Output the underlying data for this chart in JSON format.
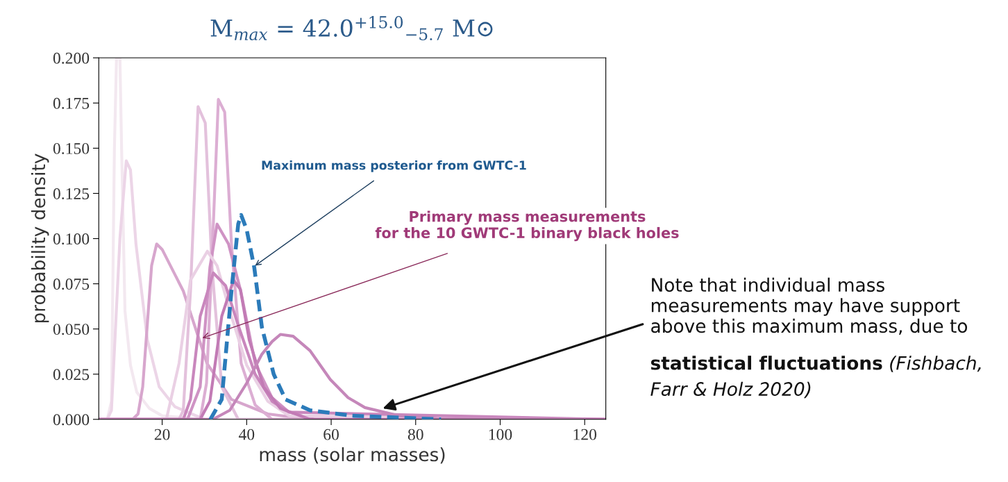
{
  "chart_data": {
    "type": "line",
    "title": "M$_{max}$ = 42.0$^{+15.0}$$_{−5.7}$ M⊙",
    "xlabel": "mass (solar masses)",
    "ylabel": "probability density",
    "xlim": [
      5,
      125
    ],
    "ylim": [
      0,
      0.2
    ],
    "xticks": [
      20,
      40,
      60,
      80,
      100,
      120
    ],
    "yticks": [
      {
        "value": 0,
        "label": "0.000"
      },
      {
        "value": 0.025,
        "label": "0.025"
      },
      {
        "value": 0.05,
        "label": "0.050"
      },
      {
        "value": 0.075,
        "label": "0.075"
      },
      {
        "value": 0.1,
        "label": "0.100"
      },
      {
        "value": 0.125,
        "label": "0.125"
      },
      {
        "value": 0.15,
        "label": "0.150"
      },
      {
        "value": 0.175,
        "label": "0.175"
      },
      {
        "value": 0.2,
        "label": "0.200"
      }
    ],
    "grid": false,
    "legend": false,
    "series": [
      {
        "color": "#f3e8f0",
        "line_style": "solid",
        "x": [
          5,
          7,
          8,
          8.7,
          9.2,
          10,
          10.4,
          11.2,
          12.5,
          14,
          17,
          20,
          30,
          125
        ],
        "values": [
          0,
          0,
          0.01,
          0.15,
          0.2,
          0.2,
          0.15,
          0.06,
          0.03,
          0.015,
          0.006,
          0.002,
          0,
          0
        ]
      },
      {
        "color": "#ecd5e7",
        "line_style": "solid",
        "x": [
          5,
          7,
          8,
          10,
          11.5,
          12.5,
          13.8,
          16.5,
          19.3,
          23,
          30,
          125
        ],
        "values": [
          0,
          0,
          0.005,
          0.1,
          0.143,
          0.138,
          0.097,
          0.044,
          0.018,
          0.007,
          0,
          0
        ]
      },
      {
        "color": "#d7a6cd",
        "line_style": "solid",
        "x": [
          5,
          13,
          14.3,
          15.4,
          17.5,
          18.7,
          20,
          25,
          30.6,
          36.4,
          45,
          55,
          125
        ],
        "values": [
          0,
          0,
          0.003,
          0.018,
          0.085,
          0.097,
          0.094,
          0.071,
          0.031,
          0.011,
          0.003,
          0,
          0
        ]
      },
      {
        "color": "#e3c1dc",
        "line_style": "solid",
        "x": [
          5,
          24,
          25,
          26.7,
          28.5,
          30.2,
          31.8,
          34.1,
          38,
          125
        ],
        "values": [
          0,
          0,
          0.005,
          0.071,
          0.173,
          0.164,
          0.084,
          0.018,
          0,
          0
        ]
      },
      {
        "color": "#dcaed3",
        "line_style": "solid",
        "x": [
          5,
          29,
          30.5,
          31.7,
          33.3,
          34.8,
          36.4,
          38.7,
          42,
          46,
          125
        ],
        "values": [
          0,
          0,
          0.02,
          0.084,
          0.177,
          0.17,
          0.097,
          0.031,
          0.008,
          0,
          0
        ]
      },
      {
        "color": "#cf93c4",
        "line_style": "solid",
        "x": [
          5,
          26,
          29,
          31.3,
          33,
          35.7,
          38.6,
          42,
          46,
          50,
          56,
          125
        ],
        "values": [
          0,
          0,
          0.018,
          0.084,
          0.108,
          0.097,
          0.071,
          0.031,
          0.012,
          0.004,
          0,
          0
        ]
      },
      {
        "color": "#ead0e4",
        "line_style": "solid",
        "x": [
          5,
          21,
          24,
          26.7,
          30.7,
          33,
          36,
          40,
          45,
          50,
          125
        ],
        "values": [
          0,
          0,
          0.031,
          0.077,
          0.093,
          0.085,
          0.06,
          0.03,
          0.01,
          0.002,
          0
        ]
      },
      {
        "color": "#c987bd",
        "line_style": "solid",
        "x": [
          5,
          25,
          26.7,
          29,
          32.1,
          35,
          38,
          42,
          46,
          50,
          125
        ],
        "values": [
          0,
          0,
          0.011,
          0.057,
          0.081,
          0.074,
          0.052,
          0.025,
          0.01,
          0.004,
          0
        ]
      },
      {
        "color": "#c27bb5",
        "line_style": "solid",
        "x": [
          5,
          29,
          31.3,
          34.1,
          36.9,
          38.5,
          40.6,
          44,
          48,
          55,
          125
        ],
        "values": [
          0,
          0,
          0.01,
          0.057,
          0.077,
          0.072,
          0.044,
          0.018,
          0.006,
          0,
          0
        ]
      },
      {
        "color": "#c587ba",
        "line_style": "solid",
        "x": [
          5,
          32,
          36,
          40,
          43.6,
          46,
          48,
          51,
          55,
          59.8,
          64,
          68,
          76,
          85,
          120
        ],
        "values": [
          0,
          0,
          0.005,
          0.02,
          0.036,
          0.043,
          0.047,
          0.046,
          0.038,
          0.022,
          0.012,
          0.0065,
          0.002,
          0.0005,
          0
        ]
      },
      {
        "color": "#2b7bba",
        "line_style": "dashed",
        "x": [
          31.4,
          34.1,
          36.4,
          38,
          38.7,
          40,
          41.8,
          43.6,
          46.4,
          49.2,
          55,
          65,
          86
        ],
        "values": [
          0,
          0.011,
          0.071,
          0.108,
          0.113,
          0.105,
          0.084,
          0.051,
          0.025,
          0.011,
          0.005,
          0.002,
          0
        ]
      }
    ],
    "annotations": [
      {
        "text": "Maximum mass posterior from GWTC-1",
        "x": 42,
        "y": 0.085
      },
      {
        "text": "Primary mass measurements\nfor the 10 GWTC-1 binary black holes",
        "x": 29.5,
        "y": 0.045
      },
      "Note that individual mass\nmeasurements may have support\nabove this maximum mass, due to",
      {
        "text": "statistical fluctuations"
      },
      {
        "text": "(Fishbach,"
      },
      {
        "text": "Farr & Holz 2020)"
      }
    ]
  }
}
